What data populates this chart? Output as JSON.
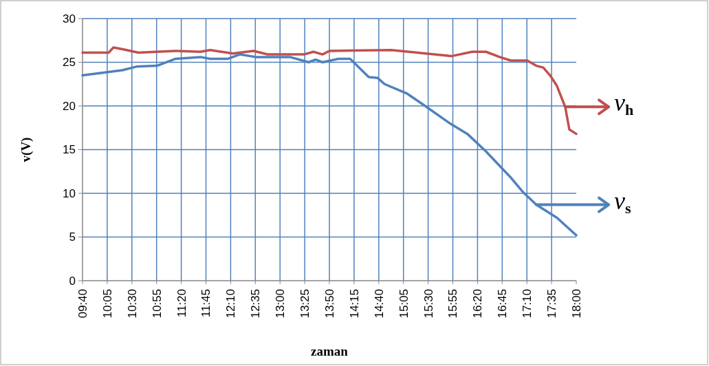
{
  "chart_data": {
    "type": "line",
    "xlabel": "zaman",
    "ylabel": "v(V)",
    "xlim": [
      9.6667,
      18
    ],
    "xticks": [
      {
        "value": 9.6667,
        "label": "09:40"
      },
      {
        "value": 10.0833,
        "label": "10:05"
      },
      {
        "value": 10.5,
        "label": "10:30"
      },
      {
        "value": 10.9167,
        "label": "10:55"
      },
      {
        "value": 11.3333,
        "label": "11:20"
      },
      {
        "value": 11.75,
        "label": "11:45"
      },
      {
        "value": 12.1667,
        "label": "12:10"
      },
      {
        "value": 12.5833,
        "label": "12:35"
      },
      {
        "value": 13,
        "label": "13:00"
      },
      {
        "value": 13.4167,
        "label": "13:25"
      },
      {
        "value": 13.8333,
        "label": "13:50"
      },
      {
        "value": 14.25,
        "label": "14:15"
      },
      {
        "value": 14.6667,
        "label": "14:40"
      },
      {
        "value": 15.0833,
        "label": "15:05"
      },
      {
        "value": 15.5,
        "label": "15:30"
      },
      {
        "value": 15.9167,
        "label": "15:55"
      },
      {
        "value": 16.3333,
        "label": "16:20"
      },
      {
        "value": 16.75,
        "label": "16:45"
      },
      {
        "value": 17.1667,
        "label": "17:10"
      },
      {
        "value": 17.5833,
        "label": "17:35"
      },
      {
        "value": 18,
        "label": "18:00"
      }
    ],
    "ylim": [
      0,
      30
    ],
    "yticks": [
      0,
      5,
      10,
      15,
      20,
      25,
      30
    ],
    "grid": true,
    "line_style": "solid",
    "legend": "right",
    "series": [
      {
        "name": "v$_{h}$",
        "color": "#c0504d",
        "x": [
          9.667,
          10.108,
          10.19,
          10.342,
          10.61,
          11.238,
          11.657,
          11.82,
          12.203,
          12.553,
          12.786,
          13.403,
          13.565,
          13.717,
          13.833,
          14.88,
          15.893,
          16.243,
          16.475,
          16.708,
          16.895,
          17.173,
          17.325,
          17.442,
          17.558,
          17.673,
          17.813,
          17.883,
          18.0
        ],
        "values": [
          26.1,
          26.1,
          26.7,
          26.5,
          26.1,
          26.3,
          26.2,
          26.4,
          26.0,
          26.3,
          25.9,
          25.9,
          26.2,
          25.9,
          26.3,
          26.4,
          25.7,
          26.2,
          26.2,
          25.6,
          25.2,
          25.2,
          24.6,
          24.4,
          23.5,
          22.3,
          19.9,
          17.3,
          16.8
        ]
      },
      {
        "name": "v$_{s}$",
        "color": "#4f81bd",
        "x": [
          9.667,
          10.342,
          10.575,
          10.923,
          11.238,
          11.657,
          11.82,
          12.122,
          12.32,
          12.588,
          13.17,
          13.483,
          13.6,
          13.717,
          13.985,
          14.182,
          14.497,
          14.648,
          14.765,
          15.148,
          15.428,
          15.847,
          16.162,
          16.475,
          16.895,
          17.092,
          17.325,
          17.673,
          18.0
        ],
        "values": [
          23.5,
          24.1,
          24.5,
          24.6,
          25.4,
          25.6,
          25.4,
          25.4,
          25.9,
          25.6,
          25.6,
          25.0,
          25.3,
          25.0,
          25.4,
          25.4,
          23.3,
          23.2,
          22.5,
          21.4,
          20.1,
          18.1,
          16.8,
          14.8,
          11.8,
          10.2,
          8.7,
          7.2,
          5.2
        ]
      }
    ]
  }
}
